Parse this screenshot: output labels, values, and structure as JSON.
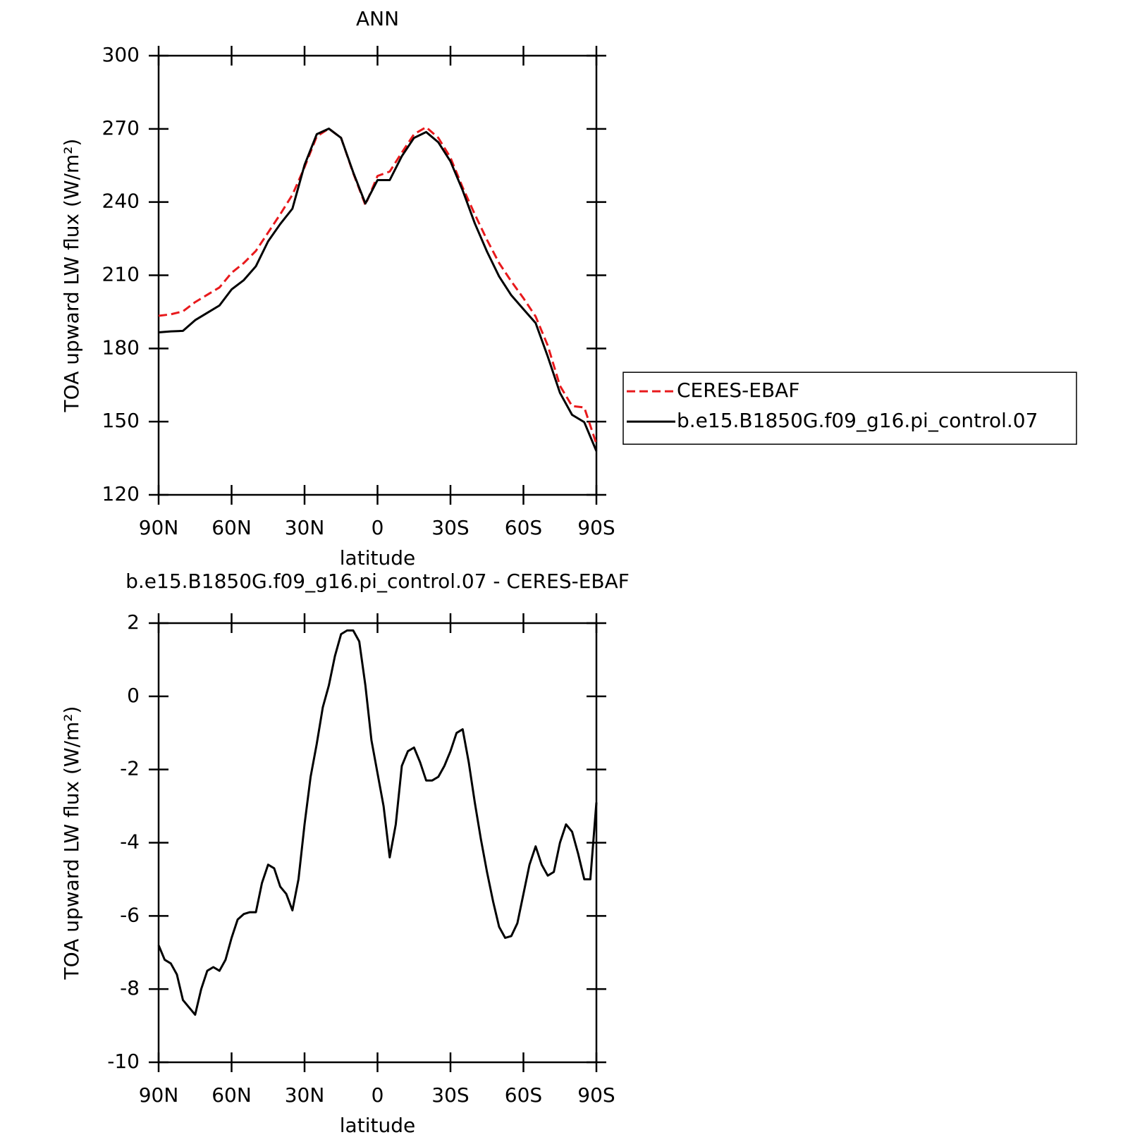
{
  "chart_data": [
    {
      "type": "line",
      "title": "ANN",
      "xlabel": "latitude",
      "ylabel": "TOA upward LW flux (W/m²)",
      "x": [
        90,
        85,
        80,
        75,
        70,
        65,
        60,
        55,
        50,
        45,
        40,
        35,
        30,
        25,
        20,
        15,
        10,
        5,
        0,
        -5,
        -10,
        -15,
        -20,
        -25,
        -30,
        -35,
        -40,
        -45,
        -50,
        -55,
        -60,
        -65,
        -70,
        -75,
        -80,
        -85,
        -90
      ],
      "series": [
        {
          "name": "CERES-EBAF",
          "color": "#e8191c",
          "line_style": "dashed",
          "values": [
            193.4,
            194,
            195.2,
            199,
            202,
            205,
            211,
            215,
            220,
            227.5,
            235,
            243,
            254.3,
            266.9,
            270.1,
            266.3,
            251.9,
            238.8,
            250.7,
            252.5,
            260.3,
            267.8,
            270.7,
            266.3,
            258.2,
            246,
            235,
            224.5,
            215,
            207.5,
            200.6,
            193.1,
            181.2,
            164.7,
            156.4,
            155.8,
            140.9
          ]
        },
        {
          "name": "b.e15.B1850G.f09_g16.pi_control.07",
          "color": "#000000",
          "line_style": "solid",
          "values": [
            186.6,
            187,
            187.2,
            191.6,
            194.6,
            197.6,
            204.2,
            208,
            213.7,
            223.9,
            231,
            237.3,
            255.2,
            267.8,
            270.1,
            266.3,
            252.2,
            239.4,
            249,
            249,
            258.8,
            266.3,
            268.7,
            264.5,
            256.7,
            244.8,
            231.3,
            219.7,
            209.5,
            201.8,
            196.1,
            190.4,
            176.7,
            161.8,
            152.8,
            149.8,
            137.9
          ]
        }
      ],
      "xlim": [
        90,
        -90
      ],
      "xticks": [
        {
          "value": 90,
          "label": "90N"
        },
        {
          "value": 60,
          "label": "60N"
        },
        {
          "value": 30,
          "label": "30N"
        },
        0,
        {
          "value": -30,
          "label": "30S"
        },
        {
          "value": -60,
          "label": "60S"
        },
        {
          "value": -90,
          "label": "90S"
        }
      ],
      "ylim": [
        120,
        300
      ],
      "yticks": [
        120,
        150,
        180,
        210,
        240,
        270,
        300
      ],
      "legend": "right"
    },
    {
      "type": "line",
      "title": "b.e15.B1850G.f09_g16.pi_control.07 - CERES-EBAF",
      "xlabel": "latitude",
      "ylabel": "TOA upward LW flux (W/m²)",
      "x": [
        90,
        87.5,
        85,
        82.5,
        80,
        77.5,
        75,
        72.5,
        70,
        67.5,
        65,
        62.5,
        60,
        57.5,
        55,
        52.5,
        50,
        47.5,
        45,
        42.5,
        40,
        37.5,
        35,
        32.5,
        30,
        27.5,
        25,
        22.5,
        20,
        17.5,
        15,
        12.5,
        10,
        7.5,
        5,
        2.5,
        0,
        -2.5,
        -5,
        -7.5,
        -10,
        -12.5,
        -15,
        -17.5,
        -20,
        -22.5,
        -25,
        -27.5,
        -30,
        -32.5,
        -35,
        -37.5,
        -40,
        -42.5,
        -45,
        -47.5,
        -50,
        -52.5,
        -55,
        -57.5,
        -60,
        -62.5,
        -65,
        -67.5,
        -70,
        -72.5,
        -75,
        -77.5,
        -80,
        -82.5,
        -85,
        -87.5,
        -90
      ],
      "series": [
        {
          "color": "#000000",
          "line_style": "solid",
          "values": [
            -6.8,
            -7.2,
            -7.3,
            -7.6,
            -8.3,
            -8.5,
            -8.7,
            -8.0,
            -7.5,
            -7.4,
            -7.5,
            -7.2,
            -6.6,
            -6.1,
            -5.95,
            -5.9,
            -5.9,
            -5.1,
            -4.6,
            -4.7,
            -5.2,
            -5.4,
            -5.85,
            -5.0,
            -3.5,
            -2.2,
            -1.3,
            -0.3,
            0.3,
            1.1,
            1.7,
            1.8,
            1.8,
            1.5,
            0.3,
            -1.2,
            -2.1,
            -3.0,
            -4.4,
            -3.5,
            -1.9,
            -1.5,
            -1.4,
            -1.8,
            -2.3,
            -2.3,
            -2.2,
            -1.9,
            -1.5,
            -1.0,
            -0.9,
            -1.8,
            -2.9,
            -3.9,
            -4.8,
            -5.6,
            -6.3,
            -6.6,
            -6.55,
            -6.2,
            -5.4,
            -4.6,
            -4.1,
            -4.6,
            -4.9,
            -4.8,
            -4.0,
            -3.5,
            -3.7,
            -4.3,
            -5.0,
            -5.0,
            -2.9
          ]
        }
      ],
      "xlim": [
        90,
        -90
      ],
      "xticks": [
        {
          "value": 90,
          "label": "90N"
        },
        {
          "value": 60,
          "label": "60N"
        },
        {
          "value": 30,
          "label": "30N"
        },
        0,
        {
          "value": -30,
          "label": "30S"
        },
        {
          "value": -60,
          "label": "60S"
        },
        {
          "value": -90,
          "label": "90S"
        }
      ],
      "ylim": [
        -10,
        2
      ],
      "yticks": [
        -10,
        -8,
        -6,
        -4,
        -2,
        0,
        2
      ]
    }
  ]
}
